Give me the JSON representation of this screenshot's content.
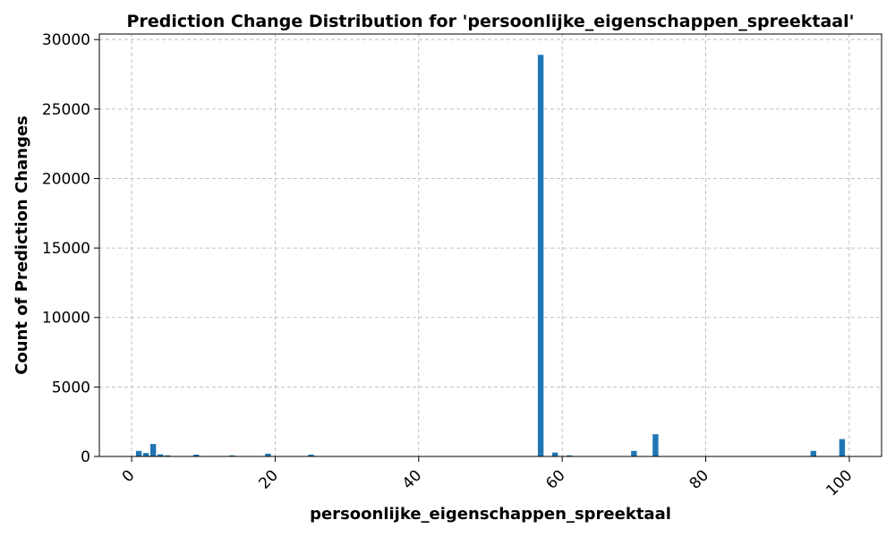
{
  "chart_data": {
    "type": "bar",
    "title": "Prediction Change Distribution for 'persoonlijke_eigenschappen_spreektaal'",
    "xlabel": "persoonlijke_eigenschappen_spreektaal",
    "ylabel": "Count of Prediction Changes",
    "xlim": [
      -4.5,
      104.5
    ],
    "ylim": [
      0,
      30400
    ],
    "xticks": [
      0,
      20,
      40,
      60,
      80,
      100
    ],
    "yticks": [
      0,
      5000,
      10000,
      15000,
      20000,
      25000,
      30000
    ],
    "grid": true,
    "color": "#1f77b4",
    "x": [
      1,
      2,
      3,
      4,
      5,
      9,
      14,
      19,
      25,
      57,
      59,
      61,
      70,
      73,
      95,
      99
    ],
    "values": [
      400,
      250,
      900,
      150,
      80,
      130,
      80,
      200,
      130,
      28900,
      280,
      80,
      400,
      1600,
      400,
      1250
    ]
  }
}
